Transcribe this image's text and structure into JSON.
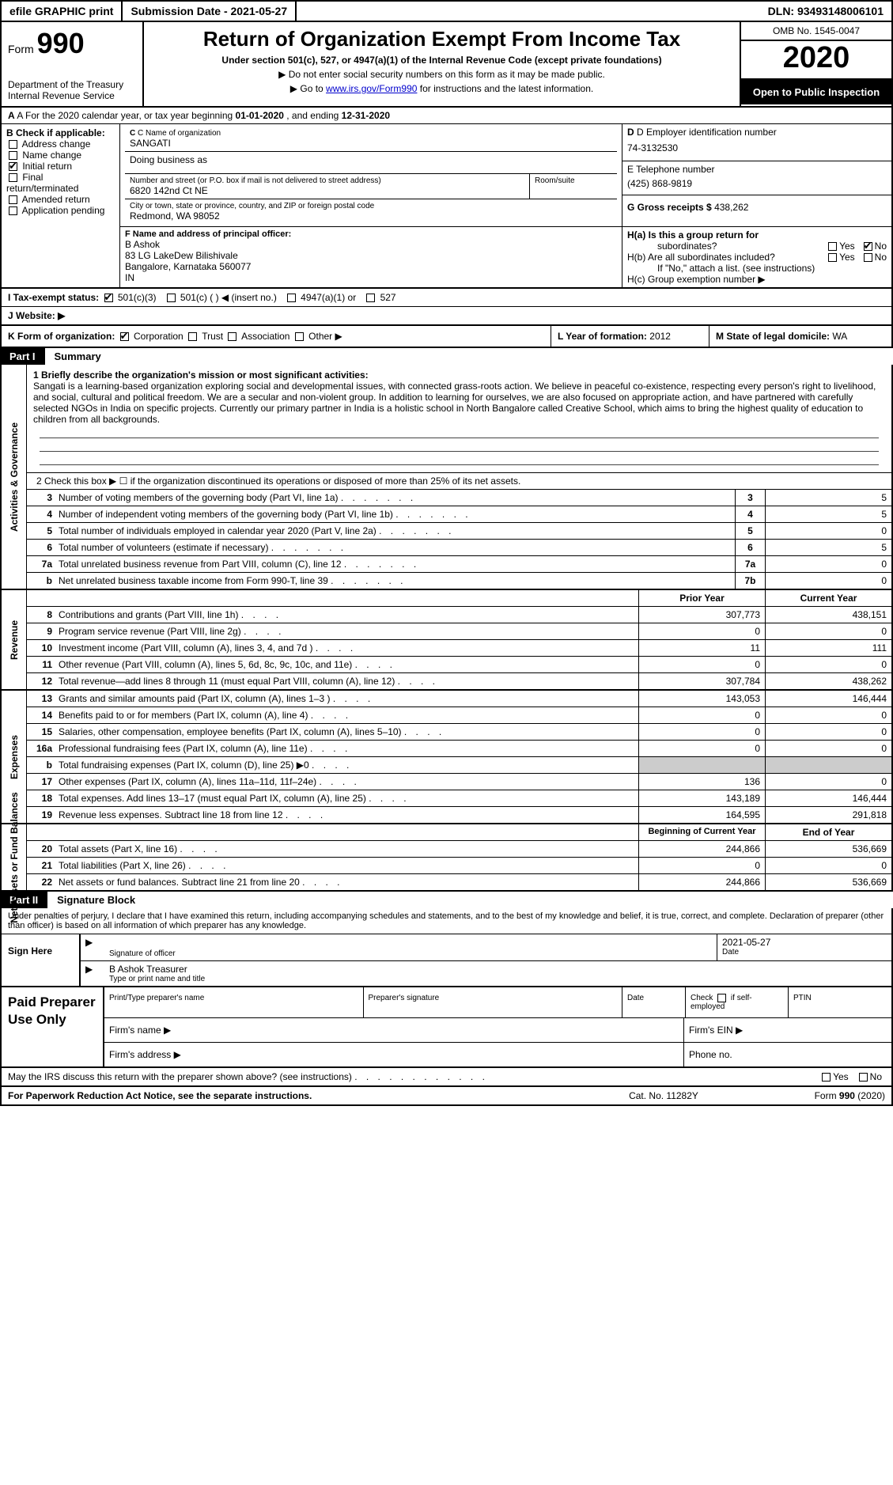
{
  "topbar": {
    "efile": "efile GRAPHIC print",
    "subLabel": "Submission Date - ",
    "subDate": "2021-05-27",
    "dln": "DLN: 93493148006101"
  },
  "header": {
    "formWord": "Form",
    "formNo": "990",
    "dept": "Department of the Treasury Internal Revenue Service",
    "title": "Return of Organization Exempt From Income Tax",
    "sub": "Under section 501(c), 527, or 4947(a)(1) of the Internal Revenue Code (except private foundations)",
    "note1": "▶ Do not enter social security numbers on this form as it may be made public.",
    "note2a": "▶ Go to ",
    "note2link": "www.irs.gov/Form990",
    "note2b": " for instructions and the latest information.",
    "omb": "OMB No. 1545-0047",
    "year": "2020",
    "open": "Open to Public Inspection"
  },
  "A": {
    "text": "A For the 2020 calendar year, or tax year beginning ",
    "d1": "01-01-2020",
    "mid": "   , and ending ",
    "d2": "12-31-2020"
  },
  "B": {
    "hdr": "B Check if applicable:",
    "items": [
      "Address change",
      "Name change",
      "Initial return",
      "Final return/terminated",
      "Amended return",
      "Application pending"
    ],
    "checkedIdx": 2
  },
  "C": {
    "nameLbl": "C Name of organization",
    "name": "SANGATI",
    "dba": "Doing business as",
    "addrLbl": "Number and street (or P.O. box if mail is not delivered to street address)",
    "addr": "6820 142nd Ct NE",
    "suite": "Room/suite",
    "cityLbl": "City or town, state or province, country, and ZIP or foreign postal code",
    "city": "Redmond, WA  98052"
  },
  "D": {
    "lbl": "D Employer identification number",
    "val": "74-3132530"
  },
  "E": {
    "lbl": "E Telephone number",
    "val": "(425) 868-9819"
  },
  "G": {
    "lbl": "G Gross receipts $",
    "val": "438,262"
  },
  "F": {
    "lbl": "F  Name and address of principal officer:",
    "val": "B Ashok\n83 LG LakeDew Bilishivale\nBangalore, Karnataka  560077\nIN"
  },
  "H": {
    "a": "H(a)  Is this a group return for",
    "a2": "subordinates?",
    "aYes": "Yes",
    "aNo": "No",
    "aChecked": "no",
    "b": "H(b)  Are all subordinates included?",
    "bNote": "If \"No,\" attach a list. (see instructions)",
    "c": "H(c)  Group exemption number ▶"
  },
  "I": {
    "lbl": "I   Tax-exempt status:",
    "o1": "501(c)(3)",
    "o2": "501(c) (  ) ◀ (insert no.)",
    "o3": "4947(a)(1) or",
    "o4": "527"
  },
  "J": {
    "lbl": "J   Website: ▶"
  },
  "K": {
    "lbl": "K Form of organization:",
    "o1": "Corporation",
    "o2": "Trust",
    "o3": "Association",
    "o4": "Other ▶"
  },
  "L": {
    "lbl": "L Year of formation:",
    "val": "2012"
  },
  "M": {
    "lbl": "M State of legal domicile:",
    "val": "WA"
  },
  "partI": {
    "num": "Part I",
    "title": "Summary"
  },
  "mission": {
    "lbl": "1  Briefly describe the organization's mission or most significant activities:",
    "txt": "Sangati is a learning-based organization exploring social and developmental issues, with connected grass-roots action. We believe in peaceful co-existence, respecting every person's right to livelihood, and social, cultural and political freedom. We are a secular and non-violent group. In addition to learning for ourselves, we are also focused on appropriate action, and have partnered with carefully selected NGOs in India on specific projects. Currently our primary partner in India is a holistic school in North Bangalore called Creative School, which aims to bring the highest quality of education to children from all backgrounds."
  },
  "line2": "2   Check this box ▶ ☐  if the organization discontinued its operations or disposed of more than 25% of its net assets.",
  "gov": [
    {
      "n": "3",
      "t": "Number of voting members of the governing body (Part VI, line 1a)",
      "b": "3",
      "v": "5"
    },
    {
      "n": "4",
      "t": "Number of independent voting members of the governing body (Part VI, line 1b)",
      "b": "4",
      "v": "5"
    },
    {
      "n": "5",
      "t": "Total number of individuals employed in calendar year 2020 (Part V, line 2a)",
      "b": "5",
      "v": "0"
    },
    {
      "n": "6",
      "t": "Total number of volunteers (estimate if necessary)",
      "b": "6",
      "v": "5"
    },
    {
      "n": "7a",
      "t": "Total unrelated business revenue from Part VIII, column (C), line 12",
      "b": "7a",
      "v": "0"
    },
    {
      "n": "b",
      "t": "Net unrelated business taxable income from Form 990-T, line 39",
      "b": "7b",
      "v": "0"
    }
  ],
  "revHdr": {
    "py": "Prior Year",
    "cy": "Current Year"
  },
  "rev": [
    {
      "n": "8",
      "t": "Contributions and grants (Part VIII, line 1h)",
      "p": "307,773",
      "c": "438,151"
    },
    {
      "n": "9",
      "t": "Program service revenue (Part VIII, line 2g)",
      "p": "0",
      "c": "0"
    },
    {
      "n": "10",
      "t": "Investment income (Part VIII, column (A), lines 3, 4, and 7d )",
      "p": "11",
      "c": "111"
    },
    {
      "n": "11",
      "t": "Other revenue (Part VIII, column (A), lines 5, 6d, 8c, 9c, 10c, and 11e)",
      "p": "0",
      "c": "0"
    },
    {
      "n": "12",
      "t": "Total revenue—add lines 8 through 11 (must equal Part VIII, column (A), line 12)",
      "p": "307,784",
      "c": "438,262"
    }
  ],
  "exp": [
    {
      "n": "13",
      "t": "Grants and similar amounts paid (Part IX, column (A), lines 1–3 )",
      "p": "143,053",
      "c": "146,444"
    },
    {
      "n": "14",
      "t": "Benefits paid to or for members (Part IX, column (A), line 4)",
      "p": "0",
      "c": "0"
    },
    {
      "n": "15",
      "t": "Salaries, other compensation, employee benefits (Part IX, column (A), lines 5–10)",
      "p": "0",
      "c": "0"
    },
    {
      "n": "16a",
      "t": "Professional fundraising fees (Part IX, column (A), line 11e)",
      "p": "0",
      "c": "0"
    },
    {
      "n": "b",
      "t": "Total fundraising expenses (Part IX, column (D), line 25) ▶0",
      "p": "",
      "c": "",
      "grey": true
    },
    {
      "n": "17",
      "t": "Other expenses (Part IX, column (A), lines 11a–11d, 11f–24e)",
      "p": "136",
      "c": "0"
    },
    {
      "n": "18",
      "t": "Total expenses. Add lines 13–17 (must equal Part IX, column (A), line 25)",
      "p": "143,189",
      "c": "146,444"
    },
    {
      "n": "19",
      "t": "Revenue less expenses. Subtract line 18 from line 12",
      "p": "164,595",
      "c": "291,818"
    }
  ],
  "netHdr": {
    "b": "Beginning of Current Year",
    "e": "End of Year"
  },
  "net": [
    {
      "n": "20",
      "t": "Total assets (Part X, line 16)",
      "p": "244,866",
      "c": "536,669"
    },
    {
      "n": "21",
      "t": "Total liabilities (Part X, line 26)",
      "p": "0",
      "c": "0"
    },
    {
      "n": "22",
      "t": "Net assets or fund balances. Subtract line 21 from line 20",
      "p": "244,866",
      "c": "536,669"
    }
  ],
  "vlabels": {
    "gov": "Activities & Governance",
    "rev": "Revenue",
    "exp": "Expenses",
    "net": "Net Assets or Fund Balances"
  },
  "partII": {
    "num": "Part II",
    "title": "Signature Block"
  },
  "sig": {
    "pre": "Under penalties of perjury, I declare that I have examined this return, including accompanying schedules and statements, and to the best of my knowledge and belief, it is true, correct, and complete. Declaration of preparer (other than officer) is based on all information of which preparer has any knowledge.",
    "here": "Sign Here",
    "sigOff": "Signature of officer",
    "date": "2021-05-27",
    "dateLbl": "Date",
    "name": "B Ashok  Treasurer",
    "nameLbl": "Type or print name and title"
  },
  "paid": {
    "hdr": "Paid Preparer Use Only",
    "c1": "Print/Type preparer's name",
    "c2": "Preparer's signature",
    "c3": "Date",
    "c4a": "Check",
    "c4b": "if self-employed",
    "c5": "PTIN",
    "r2a": "Firm's name   ▶",
    "r2b": "Firm's EIN ▶",
    "r3a": "Firm's address ▶",
    "r3b": "Phone no."
  },
  "discuss": {
    "t": "May the IRS discuss this return with the preparer shown above? (see instructions)",
    "y": "Yes",
    "n": "No"
  },
  "footer": {
    "a": "For Paperwork Reduction Act Notice, see the separate instructions.",
    "b": "Cat. No. 11282Y",
    "c": "Form 990 (2020)"
  }
}
